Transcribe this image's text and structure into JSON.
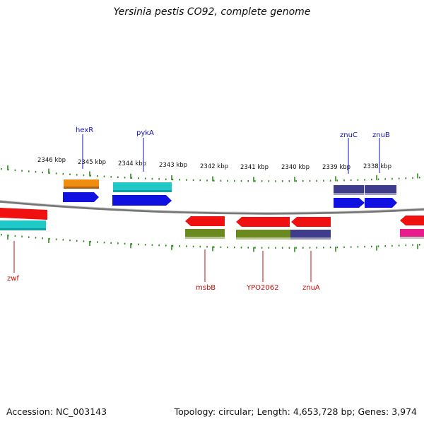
{
  "title": "Yersinia pestis CO92, complete genome",
  "footer": {
    "accession": "Accession: NC_003143",
    "summary": "Topology: circular; Length: 4,653,728 bp; Genes: 3,974"
  },
  "ruler": {
    "labels": [
      "2346 kbp",
      "2345 kbp",
      "2344 kbp",
      "2343 kbp",
      "2342 kbp",
      "2341 kbp",
      "2340 kbp",
      "2339 kbp",
      "2338 kbp"
    ]
  },
  "genes_forward": [
    {
      "name": "hexR"
    },
    {
      "name": "pykA"
    },
    {
      "name": "znuC"
    },
    {
      "name": "znuB"
    }
  ],
  "genes_reverse": [
    {
      "name": "zwf"
    },
    {
      "name": "msbB"
    },
    {
      "name": "YPO2062"
    },
    {
      "name": "znuA"
    }
  ],
  "colors": {
    "forward_label": "#1010c0",
    "reverse_label": "#c01010",
    "tick": "#2a8a1a",
    "backbone": "#888888",
    "cds_blue": "#1010e0",
    "cds_red": "#f01010",
    "orange": "#f08c10",
    "cyan": "#20c8c8",
    "slate": "#403c8c",
    "olive": "#6a8a20",
    "magenta": "#e81c8c"
  }
}
